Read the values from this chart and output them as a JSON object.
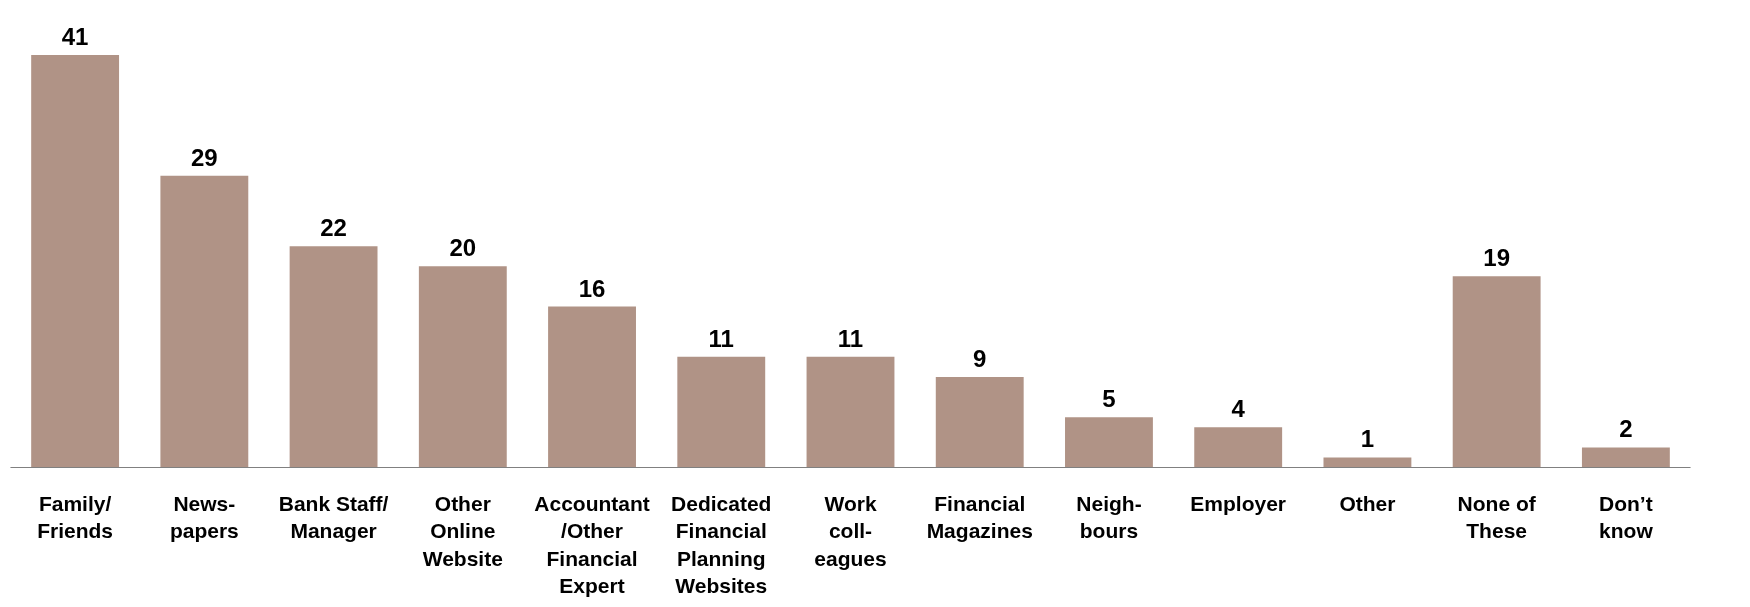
{
  "chart_data": {
    "type": "bar",
    "categories": [
      "Family/\nFriends",
      "News-\npapers",
      "Bank Staff/\nManager",
      "Other\nOnline\nWebsite",
      "Accountant\n/Other\nFinancial\nExpert",
      "Dedicated\nFinancial\nPlanning\nWebsites",
      "Work\ncoll-\neagues",
      "Financial\nMagazines",
      "Neigh-\nbours",
      "Employer",
      "Other",
      "None of\nThese",
      "Don’t\nknow"
    ],
    "values": [
      41,
      29,
      22,
      20,
      16,
      11,
      11,
      9,
      5,
      4,
      1,
      19,
      2
    ],
    "color": "#b09386",
    "data_labels": true,
    "grid": false
  }
}
